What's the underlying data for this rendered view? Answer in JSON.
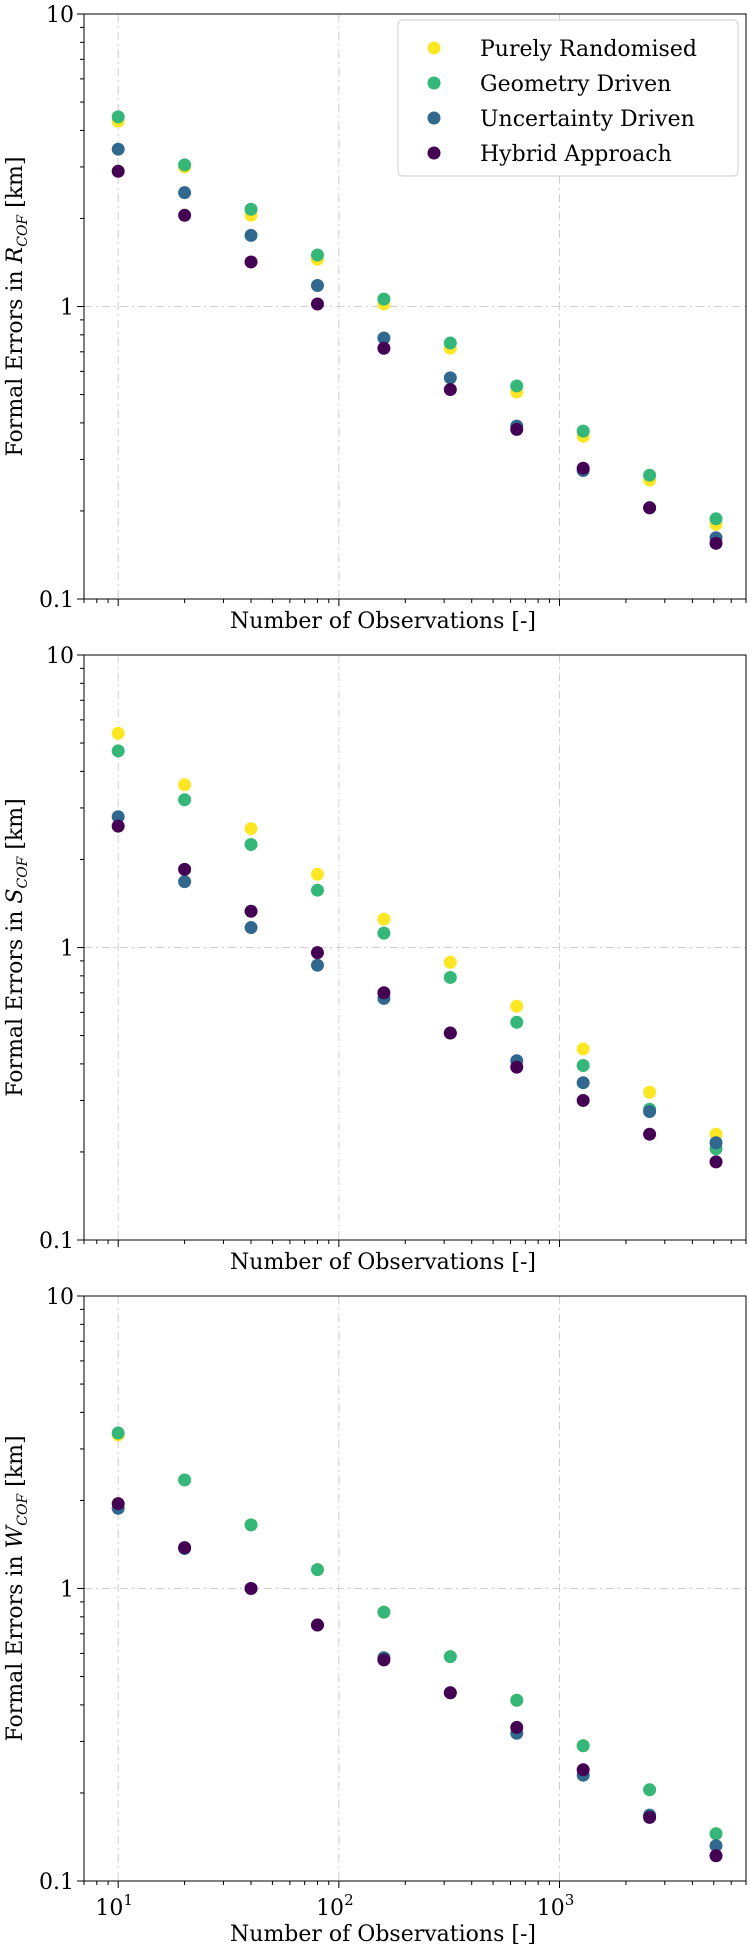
{
  "colors": {
    "purely": "#fde725",
    "geometry": "#35b779",
    "uncertainty": "#31688e",
    "hybrid": "#440154"
  },
  "chart_data": [
    {
      "type": "scatter",
      "xscale": "log",
      "yscale": "log",
      "xlim": [
        7,
        7000
      ],
      "ylim": [
        0.1,
        10
      ],
      "xlabel": "Number of Observations [-]",
      "ylabel": "Formal Errors in R_COF [km]",
      "ylabel_parts": {
        "prefix": "Formal Errors in ",
        "symbol": "R",
        "subscript": "COF",
        "suffix": " [km]"
      },
      "ytick_labels": [
        "0.1",
        "1",
        "10"
      ],
      "yticks": [
        0.1,
        1,
        10
      ],
      "xtick_labels": [],
      "grid": true,
      "legend": {
        "placement": "top-right",
        "entries": [
          "Purely Randomised",
          "Geometry Driven",
          "Uncertainty Driven",
          "Hybrid Approach"
        ]
      },
      "x": [
        10,
        20,
        40,
        80,
        160,
        320,
        640,
        1280,
        2560,
        5120
      ],
      "series": [
        {
          "name": "Purely Randomised",
          "color_key": "purely",
          "values": [
            4.3,
            3.0,
            2.05,
            1.45,
            1.02,
            0.72,
            0.51,
            0.36,
            0.255,
            0.18
          ]
        },
        {
          "name": "Geometry Driven",
          "color_key": "geometry",
          "values": [
            4.45,
            3.05,
            2.15,
            1.5,
            1.06,
            0.75,
            0.535,
            0.375,
            0.265,
            0.188
          ]
        },
        {
          "name": "Uncertainty Driven",
          "color_key": "uncertainty",
          "values": [
            3.45,
            2.45,
            1.75,
            1.18,
            0.78,
            0.57,
            0.39,
            0.275,
            0.205,
            0.162
          ]
        },
        {
          "name": "Hybrid Approach",
          "color_key": "hybrid",
          "values": [
            2.9,
            2.05,
            1.42,
            1.02,
            0.72,
            0.52,
            0.38,
            0.28,
            0.205,
            0.155
          ]
        }
      ]
    },
    {
      "type": "scatter",
      "xscale": "log",
      "yscale": "log",
      "xlim": [
        7,
        7000
      ],
      "ylim": [
        0.1,
        10
      ],
      "xlabel": "Number of Observations [-]",
      "ylabel": "Formal Errors in S_COF [km]",
      "ylabel_parts": {
        "prefix": "Formal Errors in ",
        "symbol": "S",
        "subscript": "COF",
        "suffix": " [km]"
      },
      "ytick_labels": [
        "0.1",
        "1",
        "10"
      ],
      "yticks": [
        0.1,
        1,
        10
      ],
      "xtick_labels": [],
      "grid": true,
      "x": [
        10,
        20,
        40,
        80,
        160,
        320,
        640,
        1280,
        2560,
        5120
      ],
      "series": [
        {
          "name": "Purely Randomised",
          "color_key": "purely",
          "values": [
            5.4,
            3.6,
            2.55,
            1.78,
            1.25,
            0.89,
            0.63,
            0.45,
            0.32,
            0.23
          ]
        },
        {
          "name": "Geometry Driven",
          "color_key": "geometry",
          "values": [
            4.7,
            3.2,
            2.25,
            1.57,
            1.12,
            0.79,
            0.555,
            0.395,
            0.28,
            0.205
          ]
        },
        {
          "name": "Uncertainty Driven",
          "color_key": "uncertainty",
          "values": [
            2.8,
            1.68,
            1.17,
            0.87,
            0.67,
            0.51,
            0.41,
            0.345,
            0.275,
            0.215
          ]
        },
        {
          "name": "Hybrid Approach",
          "color_key": "hybrid",
          "values": [
            2.6,
            1.85,
            1.33,
            0.96,
            0.7,
            0.51,
            0.39,
            0.3,
            0.23,
            0.185
          ]
        }
      ]
    },
    {
      "type": "scatter",
      "xscale": "log",
      "yscale": "log",
      "xlim": [
        7,
        7000
      ],
      "ylim": [
        0.1,
        10
      ],
      "xlabel": "Number of Observations [-]",
      "ylabel": "Formal Errors in W_COF [km]",
      "ylabel_parts": {
        "prefix": "Formal Errors in ",
        "symbol": "W",
        "subscript": "COF",
        "suffix": " [km]"
      },
      "ytick_labels": [
        "0.1",
        "1",
        "10"
      ],
      "yticks": [
        0.1,
        1,
        10
      ],
      "xtick_labels": [
        "10",
        "10",
        "10"
      ],
      "xtick_exponents": [
        "1",
        "2",
        "3"
      ],
      "xticks": [
        10,
        100,
        1000
      ],
      "grid": true,
      "x": [
        10,
        20,
        40,
        80,
        160,
        320,
        640,
        1280,
        2560,
        5120
      ],
      "series": [
        {
          "name": "Purely Randomised",
          "color_key": "purely",
          "values": [
            3.35,
            2.35,
            1.65,
            1.16,
            0.83,
            0.585,
            0.415,
            0.29,
            0.205,
            0.145
          ]
        },
        {
          "name": "Geometry Driven",
          "color_key": "geometry",
          "values": [
            3.4,
            2.35,
            1.65,
            1.16,
            0.83,
            0.585,
            0.415,
            0.29,
            0.205,
            0.145
          ]
        },
        {
          "name": "Uncertainty Driven",
          "color_key": "uncertainty",
          "values": [
            1.88,
            1.37,
            1.0,
            0.75,
            0.58,
            0.44,
            0.32,
            0.23,
            0.168,
            0.132
          ]
        },
        {
          "name": "Hybrid Approach",
          "color_key": "hybrid",
          "values": [
            1.95,
            1.38,
            1.0,
            0.75,
            0.57,
            0.44,
            0.335,
            0.24,
            0.165,
            0.122
          ]
        }
      ]
    }
  ]
}
